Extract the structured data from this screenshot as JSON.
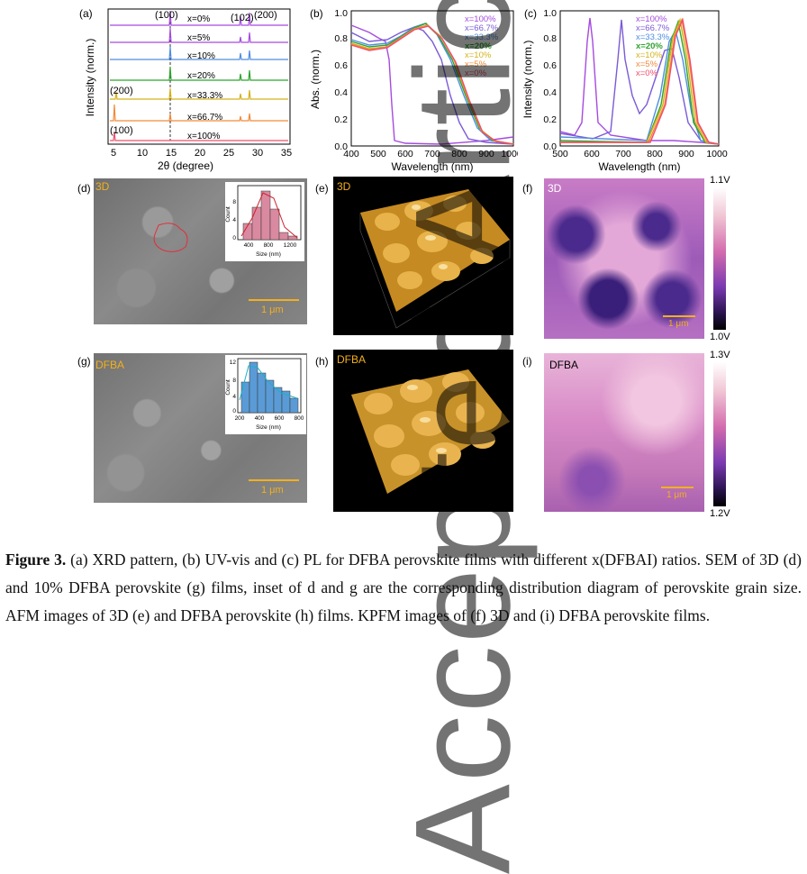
{
  "watermark": "Accepted Article",
  "panels": {
    "a": {
      "label": "(a)",
      "xlabel": "2θ (degree)",
      "ylabel": "Intensity (norm.)",
      "ticks": [
        "5",
        "10",
        "15",
        "20",
        "25",
        "30",
        "35"
      ],
      "series": [
        "x=0%",
        "x=5%",
        "x=10%",
        "x=20%",
        "x=33.3%",
        "x=66.7%",
        "x=100%"
      ],
      "peaks": {
        "p100": "(100)",
        "p102": "(102)",
        "p200": "(200)",
        "p200b": "(200)",
        "p100b": "(100)"
      }
    },
    "b": {
      "label": "(b)",
      "xlabel": "Wavelength (nm)",
      "ylabel": "Abs. (norm.)",
      "xticks": [
        "400",
        "500",
        "600",
        "700",
        "800",
        "900",
        "1000"
      ],
      "yticks": [
        "0.0",
        "0.2",
        "0.4",
        "0.6",
        "0.8",
        "1.0"
      ],
      "legend": [
        "x=100%",
        "x=66.7%",
        "x=33.3%",
        "x=20%",
        "x=10%",
        "x=5%",
        "x=0%"
      ]
    },
    "c": {
      "label": "(c)",
      "xlabel": "Wavelength (nm)",
      "ylabel": "Intensity (norm.)",
      "xticks": [
        "500",
        "600",
        "700",
        "800",
        "900",
        "1000"
      ],
      "yticks": [
        "0.0",
        "0.2",
        "0.4",
        "0.6",
        "0.8",
        "1.0"
      ],
      "legend": [
        "x=100%",
        "x=66.7%",
        "x=33.3%",
        "x=20%",
        "x=10%",
        "x=5%",
        "x=0%"
      ]
    },
    "d": {
      "label": "(d)",
      "tag": "3D",
      "scale": "1 μm",
      "inset": {
        "ylabel": "Count",
        "xlabel": "Size (nm)",
        "xticks": [
          "400",
          "800",
          "1200"
        ],
        "yticks": [
          "0",
          "4",
          "8"
        ]
      }
    },
    "e": {
      "label": "(e)",
      "tag": "3D"
    },
    "f": {
      "label": "(f)",
      "tag": "3D",
      "scale": "1 μm",
      "cbar_top": "1.1V",
      "cbar_bottom": "1.0V"
    },
    "g": {
      "label": "(g)",
      "tag": "DFBA",
      "scale": "1 μm",
      "inset": {
        "ylabel": "Count",
        "xlabel": "Size (nm)",
        "xticks": [
          "200",
          "400",
          "600",
          "800"
        ],
        "yticks": [
          "0",
          "4",
          "8",
          "12"
        ]
      }
    },
    "h": {
      "label": "(h)",
      "tag": "DFBA"
    },
    "i": {
      "label": "(i)",
      "tag": "DFBA",
      "scale": "1 μm",
      "cbar_top": "1.3V",
      "cbar_bottom": "1.2V"
    }
  },
  "caption": {
    "fig": "Figure 3.",
    "text": " (a) XRD pattern, (b) UV-vis and (c) PL for DFBA perovskite films with different x(DFBAI) ratios. SEM of 3D (d) and 10% DFBA perovskite (g) films, inset of d and g are the corresponding distribution diagram of perovskite grain size. AFM images of 3D (e) and DFBA perovskite (h) films. KPFM images of (f) 3D and (i) DFBA perovskite films."
  },
  "colors": {
    "x100": "#a64be0",
    "x667": "#7b5bd6",
    "x333": "#4f8ee0",
    "x20": "#2fa32f",
    "x10": "#d4b21a",
    "x5": "#f28a3a",
    "x0": "#f04e6b",
    "accent": "#f2b01c"
  }
}
